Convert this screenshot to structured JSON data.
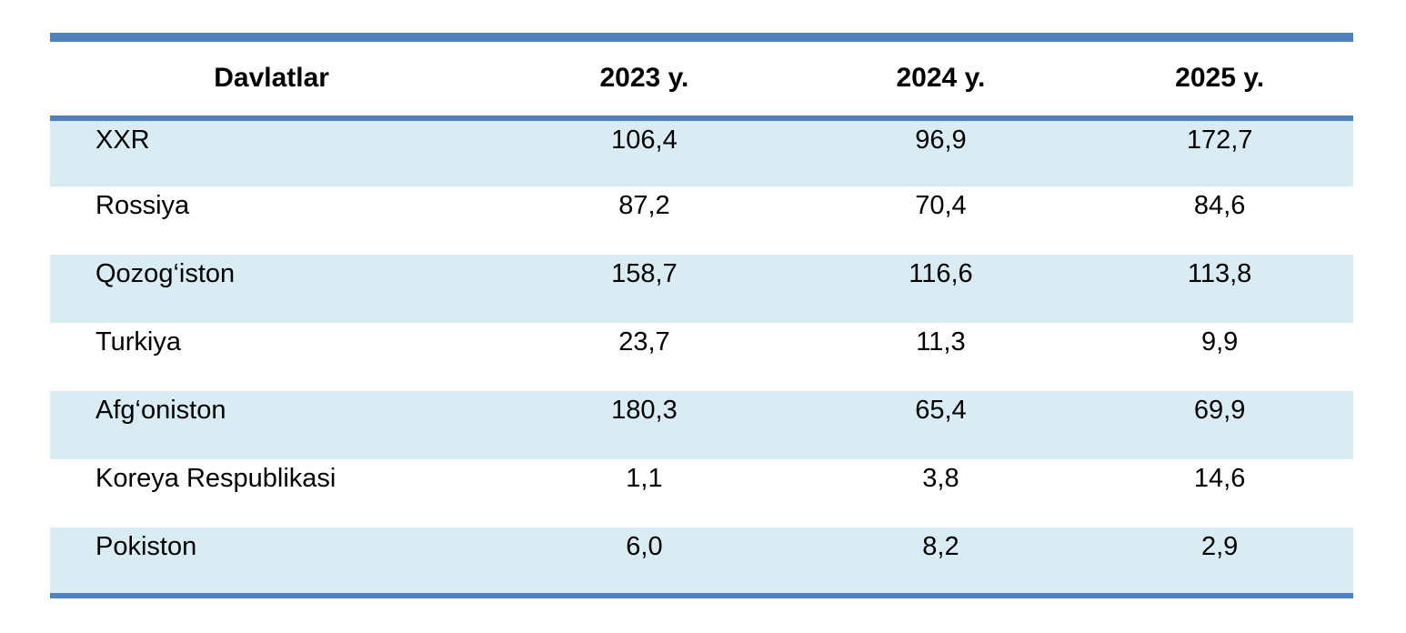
{
  "colors": {
    "accent_border": "#4f81bd",
    "band_fill": "#daecf3",
    "text": "#000000",
    "page_bg": "#ffffff"
  },
  "table": {
    "columns": [
      "Davlatlar",
      "2023 y.",
      "2024 y.",
      "2025 y."
    ],
    "rows": [
      {
        "country": "XXR",
        "y2023": "106,4",
        "y2024": "96,9",
        "y2025": "172,7"
      },
      {
        "country": "Rossiya",
        "y2023": "87,2",
        "y2024": "70,4",
        "y2025": "84,6"
      },
      {
        "country": "Qozog‘iston",
        "y2023": "158,7",
        "y2024": "116,6",
        "y2025": "113,8"
      },
      {
        "country": "Turkiya",
        "y2023": "23,7",
        "y2024": "11,3",
        "y2025": "9,9"
      },
      {
        "country": "Afg‘oniston",
        "y2023": "180,3",
        "y2024": "65,4",
        "y2025": "69,9"
      },
      {
        "country": "Koreya Respublikasi",
        "y2023": "1,1",
        "y2024": "3,8",
        "y2025": "14,6"
      },
      {
        "country": "Pokiston",
        "y2023": "6,0",
        "y2024": "8,2",
        "y2025": "2,9"
      }
    ]
  }
}
